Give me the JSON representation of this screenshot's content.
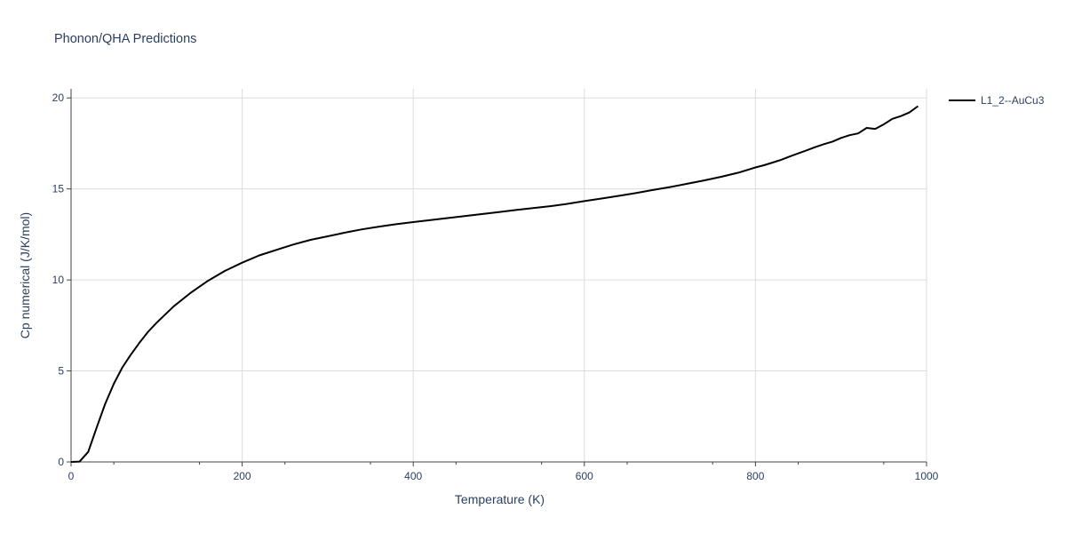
{
  "chart_data": {
    "type": "line",
    "title": "Phonon/QHA Predictions",
    "xlabel": "Temperature (K)",
    "ylabel": "Cp numerical (J/K/mol)",
    "xlim": [
      0,
      1000
    ],
    "ylim": [
      0,
      20.5
    ],
    "x_ticks": [
      0,
      200,
      400,
      600,
      800,
      1000
    ],
    "y_ticks": [
      0,
      5,
      10,
      15,
      20
    ],
    "grid": true,
    "legend_position": "top-right",
    "series": [
      {
        "name": "L1_2--AuCu3",
        "color": "#000000",
        "x": [
          0,
          10,
          20,
          30,
          40,
          50,
          60,
          70,
          80,
          90,
          100,
          120,
          140,
          160,
          180,
          200,
          220,
          240,
          260,
          280,
          300,
          320,
          340,
          360,
          380,
          400,
          420,
          440,
          460,
          480,
          500,
          520,
          540,
          560,
          580,
          600,
          620,
          640,
          660,
          680,
          700,
          720,
          740,
          760,
          780,
          800,
          810,
          820,
          830,
          840,
          850,
          860,
          870,
          880,
          890,
          900,
          910,
          920,
          930,
          940,
          950,
          960,
          970,
          980,
          990
        ],
        "y": [
          0,
          0.02,
          0.55,
          1.9,
          3.2,
          4.3,
          5.2,
          5.9,
          6.55,
          7.15,
          7.65,
          8.55,
          9.3,
          9.95,
          10.5,
          10.95,
          11.35,
          11.65,
          11.95,
          12.2,
          12.4,
          12.6,
          12.78,
          12.93,
          13.06,
          13.18,
          13.29,
          13.4,
          13.51,
          13.62,
          13.73,
          13.84,
          13.95,
          14.05,
          14.18,
          14.33,
          14.47,
          14.62,
          14.77,
          14.94,
          15.1,
          15.28,
          15.47,
          15.67,
          15.89,
          16.18,
          16.3,
          16.45,
          16.6,
          16.78,
          16.95,
          17.12,
          17.3,
          17.46,
          17.6,
          17.8,
          17.95,
          18.05,
          18.35,
          18.3,
          18.55,
          18.85,
          19.0,
          19.2,
          19.55
        ]
      }
    ]
  }
}
